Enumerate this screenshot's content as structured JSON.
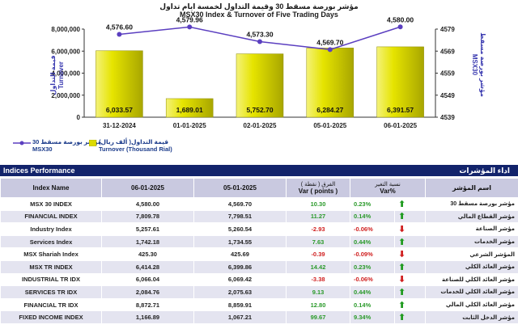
{
  "chart": {
    "title_ar": "مؤشر بورصة مسقط 30 وقيمة التداول لخمسة ايام تداول",
    "title_en": "MSX30 Index & Turnover of Five Trading Days",
    "left_axis_label_ar": "قيمة التداول",
    "left_axis_label_en": "Turnover",
    "right_axis_label_ar": "مؤشر بورصة مسقط",
    "right_axis_label_en": "MSX30",
    "legend": [
      {
        "ar": "مؤشر بورصة مسقط 30",
        "en": "MSX30",
        "kind": "line"
      },
      {
        "ar": "قيمة التداول( ألف ريال)",
        "en": "Turnover (Thousand Rial)",
        "kind": "bar"
      }
    ]
  },
  "chart_data": {
    "type": "bar",
    "categories": [
      "31-12-2024",
      "01-01-2025",
      "02-01-2025",
      "05-01-2025",
      "06-01-2025"
    ],
    "series": [
      {
        "name": "Turnover (Thousand Rial)",
        "type": "bar",
        "axis": "left",
        "values": [
          6033.57,
          1689.01,
          5752.7,
          6284.27,
          6391.57
        ],
        "labels": [
          "6,033.57",
          "1,689.01",
          "5,752.70",
          "6,284.27",
          "6,391.57"
        ]
      },
      {
        "name": "MSX30",
        "type": "line",
        "axis": "right",
        "values": [
          4576.6,
          4579.96,
          4573.3,
          4569.7,
          4580.0
        ],
        "labels": [
          "4,576.60",
          "4,579.96",
          "4,573.30",
          "4,569.70",
          "4,580.00"
        ]
      }
    ],
    "left_ticks": [
      "0",
      "2,000,000",
      "4,000,000",
      "6,000,000",
      "8,000,000"
    ],
    "right_ticks": [
      "4539",
      "4549",
      "4559",
      "4569",
      "4579"
    ],
    "colors": {
      "bar": "#d8d400",
      "line": "#5b3fc0"
    }
  },
  "section": {
    "title_en": "Indices Performance",
    "title_ar": "اداء المؤشرات"
  },
  "table": {
    "headers": {
      "name": "Index Name",
      "d1": "06-01-2025",
      "d2": "05-01-2025",
      "var_ar": "الفرق ( نقطة )",
      "var_en": "Var ( points )",
      "pct_ar": "نسبة التغير",
      "pct_en": "Var%",
      "ar": "اسم المؤشر"
    },
    "rows": [
      {
        "name": "MSX 30 INDEX",
        "d1": "4,580.00",
        "d2": "4,569.70",
        "var": "10.30",
        "pct": "0.23%",
        "dir": "up",
        "ar": "مؤشر بورصة مسقط 30"
      },
      {
        "name": "FINANCIAL INDEX",
        "d1": "7,809.78",
        "d2": "7,798.51",
        "var": "11.27",
        "pct": "0.14%",
        "dir": "up",
        "ar": "مؤشر القطاع المالي"
      },
      {
        "name": "Industry Index",
        "d1": "5,257.61",
        "d2": "5,260.54",
        "var": "-2.93",
        "pct": "-0.06%",
        "dir": "down",
        "ar": "مؤشر الصناعة"
      },
      {
        "name": "Services Index",
        "d1": "1,742.18",
        "d2": "1,734.55",
        "var": "7.63",
        "pct": "0.44%",
        "dir": "up",
        "ar": "مؤشر الخدمات"
      },
      {
        "name": "MSX Shariah Index",
        "d1": "425.30",
        "d2": "425.69",
        "var": "-0.39",
        "pct": "-0.09%",
        "dir": "down",
        "ar": "المؤشر الشرعي"
      },
      {
        "name": "MSX TR INDEX",
        "d1": "6,414.28",
        "d2": "6,399.86",
        "var": "14.42",
        "pct": "0.23%",
        "dir": "up",
        "ar": "مؤشر العائد الكلي"
      },
      {
        "name": "INDUSTRIAL TR IDX",
        "d1": "6,066.04",
        "d2": "6,069.42",
        "var": "-3.38",
        "pct": "-0.06%",
        "dir": "down",
        "ar": "مؤشر العائد الكلي للصناعة"
      },
      {
        "name": "SERVICES TR IDX",
        "d1": "2,084.76",
        "d2": "2,075.63",
        "var": "9.13",
        "pct": "0.44%",
        "dir": "up",
        "ar": "مؤشر العائد الكلي للخدمات"
      },
      {
        "name": "FINANCIAL TR IDX",
        "d1": "8,872.71",
        "d2": "8,859.91",
        "var": "12.80",
        "pct": "0.14%",
        "dir": "up",
        "ar": "مؤشر العائد الكلي المالي"
      },
      {
        "name": "FIXED INCOME INDEX",
        "d1": "1,166.89",
        "d2": "1,067.21",
        "var": "99.67",
        "pct": "9.34%",
        "dir": "up",
        "ar": "مؤشر الدخل الثابت"
      }
    ]
  }
}
